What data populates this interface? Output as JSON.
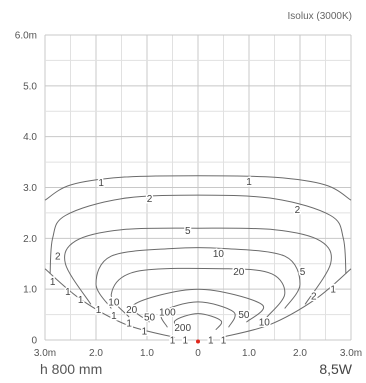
{
  "chart_data": {
    "type": "isolux contour",
    "title": "Isolux (3000K)",
    "mounting_height": "h 800 mm",
    "power": "8,5W",
    "x_ticks": [
      "3.0m",
      "2.0",
      "1.0",
      "0",
      "1.0",
      "2.0",
      "3.0m"
    ],
    "x_tick_values": [
      -3,
      -2,
      -1,
      0,
      1,
      2,
      3
    ],
    "y_ticks": [
      "0",
      "1.0",
      "2.0",
      "3.0",
      "4.0",
      "5.0",
      "6.0m"
    ],
    "y_tick_values": [
      0,
      1,
      2,
      3,
      4,
      5,
      6
    ],
    "xlim": [
      -3,
      3
    ],
    "ylim": [
      0,
      6
    ],
    "grid": true,
    "source_point": {
      "x": 0,
      "y": 0,
      "color": "#e0261b"
    },
    "line_color": "#6b6b6b",
    "contours": [
      {
        "level": "1",
        "points": [
          [
            -3.0,
            2.75
          ],
          [
            -2.5,
            3.05
          ],
          [
            -1.5,
            3.2
          ],
          [
            0,
            3.23
          ],
          [
            1.5,
            3.2
          ],
          [
            2.5,
            3.05
          ],
          [
            3.0,
            2.75
          ]
        ]
      },
      {
        "level": "2",
        "points": [
          [
            -2.9,
            1.3
          ],
          [
            -2.85,
            2.0
          ],
          [
            -2.6,
            2.45
          ],
          [
            -1.5,
            2.78
          ],
          [
            0,
            2.85
          ],
          [
            1.5,
            2.78
          ],
          [
            2.6,
            2.45
          ],
          [
            2.85,
            2.0
          ],
          [
            2.9,
            1.3
          ]
        ]
      },
      {
        "level": "5",
        "points": [
          [
            -2.1,
            0.7
          ],
          [
            -2.6,
            1.5
          ],
          [
            -2.4,
            1.95
          ],
          [
            -1.5,
            2.17
          ],
          [
            0,
            2.2
          ],
          [
            1.5,
            2.17
          ],
          [
            2.4,
            1.95
          ],
          [
            2.6,
            1.5
          ],
          [
            2.1,
            0.7
          ]
        ]
      },
      {
        "level": "10",
        "points": [
          [
            -1.7,
            0.62
          ],
          [
            -2.0,
            1.1
          ],
          [
            -1.7,
            1.65
          ],
          [
            -0.5,
            1.8
          ],
          [
            0.5,
            1.8
          ],
          [
            1.7,
            1.65
          ],
          [
            2.0,
            1.1
          ],
          [
            1.7,
            0.62
          ]
        ]
      },
      {
        "level": "20",
        "points": [
          [
            -1.35,
            0.45
          ],
          [
            -1.7,
            0.9
          ],
          [
            -1.2,
            1.35
          ],
          [
            0.6,
            1.4
          ],
          [
            1.45,
            1.3
          ],
          [
            1.7,
            0.9
          ],
          [
            1.35,
            0.45
          ]
        ]
      },
      {
        "level": "50",
        "points": [
          [
            -0.95,
            0.35
          ],
          [
            -1.25,
            0.7
          ],
          [
            0,
            1.0
          ],
          [
            1.25,
            0.7
          ],
          [
            0.95,
            0.35
          ]
        ]
      },
      {
        "level": "100",
        "points": [
          [
            -0.6,
            0.25
          ],
          [
            -0.7,
            0.55
          ],
          [
            0,
            0.75
          ],
          [
            0.7,
            0.55
          ],
          [
            0.6,
            0.25
          ]
        ]
      },
      {
        "level": "200",
        "points": [
          [
            -0.35,
            0.2
          ],
          [
            -0.45,
            0.38
          ],
          [
            0,
            0.52
          ],
          [
            0.45,
            0.38
          ],
          [
            0.35,
            0.2
          ]
        ]
      }
    ],
    "edge_lines": [
      {
        "level": "1",
        "points": [
          [
            -3.0,
            1.4
          ],
          [
            -2.3,
            0.8
          ],
          [
            -1.4,
            0.3
          ],
          [
            -0.45,
            0.05
          ]
        ]
      },
      {
        "level": "1",
        "points": [
          [
            3.0,
            1.4
          ],
          [
            2.3,
            0.8
          ],
          [
            1.4,
            0.3
          ],
          [
            0.45,
            0.05
          ]
        ]
      }
    ],
    "labels": [
      {
        "text": "1",
        "x": -1.9,
        "y": 3.1
      },
      {
        "text": "1",
        "x": 1.0,
        "y": 3.12
      },
      {
        "text": "2",
        "x": -0.95,
        "y": 2.78
      },
      {
        "text": "2",
        "x": 1.95,
        "y": 2.57
      },
      {
        "text": "2",
        "x": -2.75,
        "y": 1.65
      },
      {
        "text": "5",
        "x": -0.2,
        "y": 2.15
      },
      {
        "text": "5",
        "x": 2.05,
        "y": 1.35
      },
      {
        "text": "10",
        "x": 0.4,
        "y": 1.7
      },
      {
        "text": "10",
        "x": -1.65,
        "y": 0.75
      },
      {
        "text": "10",
        "x": 1.3,
        "y": 0.35
      },
      {
        "text": "20",
        "x": 0.8,
        "y": 1.35
      },
      {
        "text": "20",
        "x": -1.3,
        "y": 0.6
      },
      {
        "text": "50",
        "x": -0.95,
        "y": 0.45
      },
      {
        "text": "50",
        "x": 0.9,
        "y": 0.5
      },
      {
        "text": "100",
        "x": -0.6,
        "y": 0.55
      },
      {
        "text": "200",
        "x": -0.3,
        "y": 0.25
      },
      {
        "text": "2",
        "x": 2.27,
        "y": 0.87
      },
      {
        "text": "1",
        "x": 2.65,
        "y": 1.0
      },
      {
        "text": "1",
        "x": -2.85,
        "y": 1.15
      },
      {
        "text": "1",
        "x": -2.55,
        "y": 0.95
      },
      {
        "text": "1",
        "x": -2.3,
        "y": 0.8
      },
      {
        "text": "1",
        "x": -1.95,
        "y": 0.6
      },
      {
        "text": "1",
        "x": -1.65,
        "y": 0.48
      },
      {
        "text": "1",
        "x": -1.35,
        "y": 0.33
      },
      {
        "text": "1",
        "x": -1.05,
        "y": 0.18
      },
      {
        "text": "1",
        "x": -0.5,
        "y": 0.0
      },
      {
        "text": "1",
        "x": -0.25,
        "y": 0.0
      },
      {
        "text": "1",
        "x": 0.25,
        "y": 0.0
      },
      {
        "text": "1",
        "x": 0.5,
        "y": 0.0
      }
    ]
  }
}
